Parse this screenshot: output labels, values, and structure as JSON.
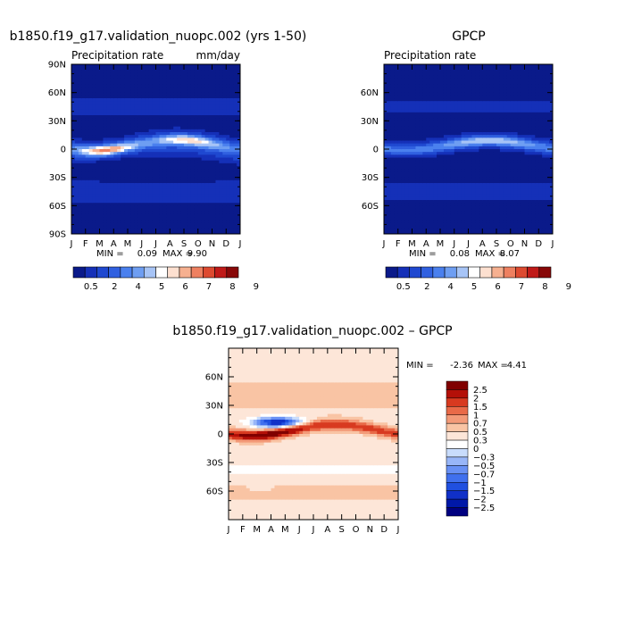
{
  "months": [
    "J",
    "F",
    "M",
    "A",
    "M",
    "J",
    "J",
    "A",
    "S",
    "O",
    "N",
    "D",
    "J"
  ],
  "chart_data": [
    {
      "type": "heatmap",
      "title": "b1850.f19_g17.validation_nuopc.002 (yrs 1-50)",
      "subtitle_left": "Precipitation rate",
      "subtitle_right": "mm/day",
      "x": "month",
      "y": "latitude",
      "ylim": [
        -90,
        90
      ],
      "yticks": [
        "90N",
        "60N",
        "30N",
        "0",
        "30S",
        "60S",
        "90S"
      ],
      "stats": {
        "min_label": "MIN =",
        "min": "0.09",
        "max_label": "MAX =",
        "max": "9.90"
      },
      "colorbar": [
        "0.5",
        "2",
        "4",
        "5",
        "6",
        "7",
        "8",
        "9"
      ]
    },
    {
      "type": "heatmap",
      "title": "GPCP",
      "subtitle_left": "Precipitation rate",
      "subtitle_right": "",
      "x": "month",
      "y": "latitude",
      "ylim": [
        -90,
        90
      ],
      "yticks": [
        "60N",
        "30N",
        "0",
        "30S",
        "60S"
      ],
      "stats": {
        "min_label": "MIN =",
        "min": "0.08",
        "max_label": "MAX =",
        "max": "8.07"
      },
      "colorbar": [
        "0.5",
        "2",
        "4",
        "5",
        "6",
        "7",
        "8",
        "9"
      ]
    },
    {
      "type": "heatmap",
      "title": "b1850.f19_g17.validation_nuopc.002 – GPCP",
      "x": "month",
      "y": "latitude",
      "ylim": [
        -90,
        90
      ],
      "yticks": [
        "60N",
        "30N",
        "0",
        "30S",
        "60S"
      ],
      "stats": {
        "min_label": "MIN =",
        "min": "-2.36",
        "max_label": "MAX =",
        "max": "4.41"
      },
      "colorbar": [
        "2.5",
        "2",
        "1.5",
        "1",
        "0.7",
        "0.5",
        "0.3",
        "0",
        "−0.3",
        "−0.5",
        "−0.7",
        "−1",
        "−1.5",
        "−2",
        "−2.5"
      ]
    }
  ],
  "colors": {
    "seq": [
      "#0a1a8a",
      "#1530b8",
      "#1f48d0",
      "#3060e0",
      "#4a80ee",
      "#6e9ef2",
      "#a7c4f6",
      "#ffffff",
      "#fde0d0",
      "#f6b090",
      "#ee8060",
      "#dd4a30",
      "#c01a18",
      "#880808"
    ],
    "div": [
      "#000080",
      "#0018a8",
      "#1030c8",
      "#2050e0",
      "#4070ee",
      "#6890f4",
      "#98b6f8",
      "#c8dcfc",
      "#ffffff",
      "#fde6d8",
      "#f9c4a4",
      "#f39a78",
      "#e96a48",
      "#d83a20",
      "#b41008",
      "#800000"
    ]
  }
}
